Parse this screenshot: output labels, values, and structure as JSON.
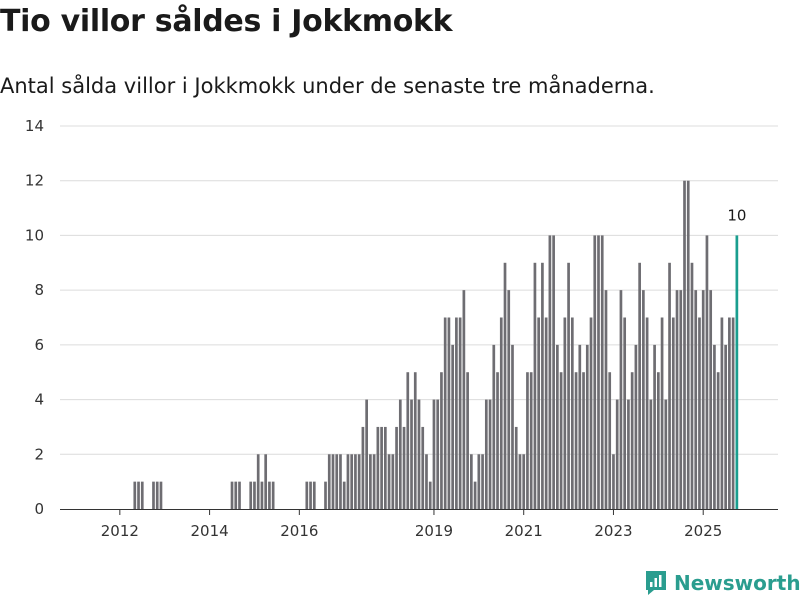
{
  "header": {
    "title": "Tio villor såldes i Jokkmokk",
    "subtitle": "Antal sålda villor i Jokkmokk under de senaste tre månaderna."
  },
  "brand": {
    "name": "Newsworthy",
    "color": "#2a9d8f",
    "icon": "newsworthy-logo-icon"
  },
  "chart_data": {
    "type": "bar",
    "title": "Tio villor såldes i Jokkmokk",
    "subtitle": "Antal sålda villor i Jokkmokk under de senaste tre månaderna.",
    "xlabel": "",
    "ylabel": "",
    "ylim": [
      0,
      14
    ],
    "yticks": [
      "0",
      "2",
      "4",
      "6",
      "8",
      "10",
      "12",
      "14"
    ],
    "grid": true,
    "xticks": [
      {
        "label": "2012",
        "month": 12
      },
      {
        "label": "2014",
        "month": 36
      },
      {
        "label": "2016",
        "month": 60
      },
      {
        "label": "2019",
        "month": 96
      },
      {
        "label": "2021",
        "month": 120
      },
      {
        "label": "2023",
        "month": 144
      },
      {
        "label": "2025",
        "month": 168
      }
    ],
    "month_range": [
      -4,
      188
    ],
    "bar_color": "#6e6d72",
    "highlight_color": "#1a9e8f",
    "highlight_label": "10",
    "points": [
      [
        16,
        1
      ],
      [
        17,
        1
      ],
      [
        18,
        1
      ],
      [
        21,
        1
      ],
      [
        22,
        1
      ],
      [
        23,
        1
      ],
      [
        42,
        1
      ],
      [
        43,
        1
      ],
      [
        44,
        1
      ],
      [
        47,
        1
      ],
      [
        48,
        1
      ],
      [
        49,
        2
      ],
      [
        50,
        1
      ],
      [
        51,
        2
      ],
      [
        52,
        1
      ],
      [
        53,
        1
      ],
      [
        62,
        1
      ],
      [
        63,
        1
      ],
      [
        64,
        1
      ],
      [
        67,
        1
      ],
      [
        68,
        2
      ],
      [
        69,
        2
      ],
      [
        70,
        2
      ],
      [
        71,
        2
      ],
      [
        72,
        1
      ],
      [
        73,
        2
      ],
      [
        74,
        2
      ],
      [
        75,
        2
      ],
      [
        76,
        2
      ],
      [
        77,
        3
      ],
      [
        78,
        4
      ],
      [
        79,
        2
      ],
      [
        80,
        2
      ],
      [
        81,
        3
      ],
      [
        82,
        3
      ],
      [
        83,
        3
      ],
      [
        84,
        2
      ],
      [
        85,
        2
      ],
      [
        86,
        3
      ],
      [
        87,
        4
      ],
      [
        88,
        3
      ],
      [
        89,
        5
      ],
      [
        90,
        4
      ],
      [
        91,
        5
      ],
      [
        92,
        4
      ],
      [
        93,
        3
      ],
      [
        94,
        2
      ],
      [
        95,
        1
      ],
      [
        96,
        4
      ],
      [
        97,
        4
      ],
      [
        98,
        5
      ],
      [
        99,
        7
      ],
      [
        100,
        7
      ],
      [
        101,
        6
      ],
      [
        102,
        7
      ],
      [
        103,
        7
      ],
      [
        104,
        8
      ],
      [
        105,
        5
      ],
      [
        106,
        2
      ],
      [
        107,
        1
      ],
      [
        108,
        2
      ],
      [
        109,
        2
      ],
      [
        110,
        4
      ],
      [
        111,
        4
      ],
      [
        112,
        6
      ],
      [
        113,
        5
      ],
      [
        114,
        7
      ],
      [
        115,
        9
      ],
      [
        116,
        8
      ],
      [
        117,
        6
      ],
      [
        118,
        3
      ],
      [
        119,
        2
      ],
      [
        120,
        2
      ],
      [
        121,
        5
      ],
      [
        122,
        5
      ],
      [
        123,
        9
      ],
      [
        124,
        7
      ],
      [
        125,
        9
      ],
      [
        126,
        7
      ],
      [
        127,
        10
      ],
      [
        128,
        10
      ],
      [
        129,
        6
      ],
      [
        130,
        5
      ],
      [
        131,
        7
      ],
      [
        132,
        9
      ],
      [
        133,
        7
      ],
      [
        134,
        5
      ],
      [
        135,
        6
      ],
      [
        136,
        5
      ],
      [
        137,
        6
      ],
      [
        138,
        7
      ],
      [
        139,
        10
      ],
      [
        140,
        10
      ],
      [
        141,
        10
      ],
      [
        142,
        8
      ],
      [
        143,
        5
      ],
      [
        144,
        2
      ],
      [
        145,
        4
      ],
      [
        146,
        8
      ],
      [
        147,
        7
      ],
      [
        148,
        4
      ],
      [
        149,
        5
      ],
      [
        150,
        6
      ],
      [
        151,
        9
      ],
      [
        152,
        8
      ],
      [
        153,
        7
      ],
      [
        154,
        4
      ],
      [
        155,
        6
      ],
      [
        156,
        5
      ],
      [
        157,
        7
      ],
      [
        158,
        4
      ],
      [
        159,
        9
      ],
      [
        160,
        7
      ],
      [
        161,
        8
      ],
      [
        162,
        8
      ],
      [
        163,
        12
      ],
      [
        164,
        12
      ],
      [
        165,
        9
      ],
      [
        166,
        8
      ],
      [
        167,
        7
      ],
      [
        168,
        8
      ],
      [
        169,
        10
      ],
      [
        170,
        8
      ],
      [
        171,
        6
      ],
      [
        172,
        5
      ],
      [
        173,
        7
      ],
      [
        174,
        6
      ],
      [
        175,
        7
      ],
      [
        176,
        7
      ],
      [
        177,
        10
      ]
    ]
  }
}
